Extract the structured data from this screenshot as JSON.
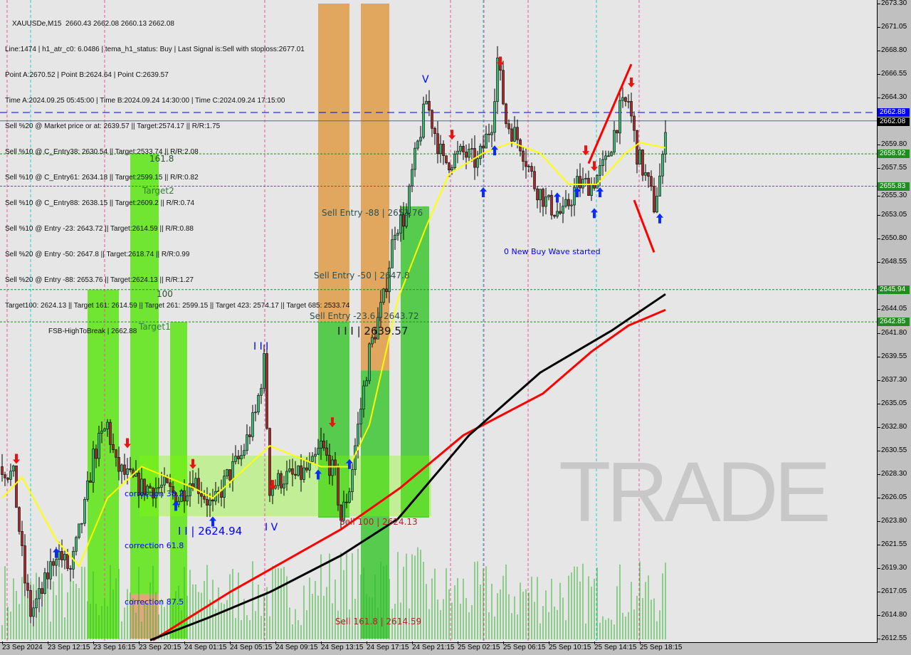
{
  "header": {
    "symbol_line": "XAUUSDe,M15  2660.43 2662.08 2660.13 2662.08",
    "lines": [
      "Line:1474 | h1_atr_c0: 6.0486 | tema_h1_status: Buy | Last Signal is:Sell with stoploss:2677.01",
      "Point A:2670.52 | Point B:2624.64 | Point C:2639.57",
      "Time A:2024.09.25 05:45:00 | Time B:2024.09.24 14:30:00 | Time C:2024.09.24 17:15:00",
      "Sell %20 @ Market price or at: 2639.57 || Target:2574.17 || R/R:1.75",
      "Sell %10 @ C_Entry38: 2630.54 || Target:2533.74 || R/R:2.08",
      "Sell %10 @ C_Entry61: 2634.18 || Target:2599.15 || R/R:0.82",
      "Sell %10 @ C_Entry88: 2638.15 || Target:2609.2 || R/R:0.74",
      "Sell %10 @ Entry -23: 2643.72 || Target:2614.59 || R/R:0.88",
      "Sell %20 @ Entry -50: 2647.8 || Target:2618.74 || R/R:0.99",
      "Sell %20 @ Entry -88: 2653.76 || Target:2624.13 || R/R:1.27",
      "Target100: 2624.13 || Target 161: 2614.59 || Target 261: 2599.15 || Target 423: 2574.17 || Target 685: 2533.74"
    ],
    "fsb": "FSB-HighToBreak | 2662.88"
  },
  "watermark": "TRADE",
  "chart_data": {
    "type": "candlestick",
    "symbol": "XAUUSDe",
    "timeframe": "M15",
    "ylim": [
      2612.55,
      2673.3
    ],
    "y_ticks": [
      "2673.30",
      "2671.05",
      "2668.80",
      "2666.55",
      "2664.30",
      "2659.80",
      "2657.55",
      "2655.30",
      "2653.05",
      "2650.80",
      "2648.55",
      "2644.05",
      "2641.80",
      "2639.55",
      "2637.30",
      "2635.05",
      "2632.80",
      "2630.55",
      "2628.30",
      "2626.05",
      "2623.80",
      "2621.55",
      "2619.30",
      "2617.05",
      "2614.80",
      "2612.55"
    ],
    "x_ticks": [
      "23 Sep 2024",
      "23 Sep 12:15",
      "23 Sep 16:15",
      "23 Sep 20:15",
      "24 Sep 01:15",
      "24 Sep 05:15",
      "24 Sep 09:15",
      "24 Sep 13:15",
      "24 Sep 17:15",
      "24 Sep 21:15",
      "25 Sep 02:15",
      "25 Sep 06:15",
      "25 Sep 10:15",
      "25 Sep 14:15",
      "25 Sep 18:15"
    ],
    "price_badges": [
      {
        "value": "2662.88",
        "color": "#0000ff",
        "style": "dashed"
      },
      {
        "value": "2662.08",
        "color": "#000000",
        "style": "solid"
      },
      {
        "value": "2658.92",
        "color": "#228b22",
        "style": "dotted"
      },
      {
        "value": "2655.83",
        "color": "#228b22",
        "style": "dotted"
      },
      {
        "value": "2645.94",
        "color": "#228b22",
        "style": "dotted"
      },
      {
        "value": "2642.85",
        "color": "#228b22",
        "style": "dotted"
      }
    ],
    "price_path": [
      [
        0,
        2629
      ],
      [
        4,
        2628
      ],
      [
        8,
        2618
      ],
      [
        10,
        2615
      ],
      [
        14,
        2617
      ],
      [
        19,
        2621
      ],
      [
        24,
        2619
      ],
      [
        29,
        2625
      ],
      [
        32,
        2630
      ],
      [
        37,
        2633
      ],
      [
        40,
        2629
      ],
      [
        44,
        2628
      ],
      [
        49,
        2627
      ],
      [
        57,
        2627
      ],
      [
        62,
        2626
      ],
      [
        67,
        2628
      ],
      [
        74,
        2625
      ],
      [
        79,
        2628
      ],
      [
        84,
        2630
      ],
      [
        89,
        2634
      ],
      [
        92,
        2639
      ],
      [
        94,
        2627
      ],
      [
        99,
        2628
      ],
      [
        104,
        2628
      ],
      [
        109,
        2629
      ],
      [
        112,
        2631
      ],
      [
        117,
        2628
      ],
      [
        119,
        2624
      ],
      [
        122,
        2627
      ],
      [
        124,
        2631
      ],
      [
        129,
        2640
      ],
      [
        134,
        2645
      ],
      [
        138,
        2652
      ],
      [
        142,
        2653
      ],
      [
        144,
        2657
      ],
      [
        149,
        2664
      ],
      [
        152,
        2661
      ],
      [
        155,
        2658
      ],
      [
        162,
        2659
      ],
      [
        167,
        2658
      ],
      [
        172,
        2662
      ],
      [
        174,
        2668
      ],
      [
        177,
        2662
      ],
      [
        182,
        2660
      ],
      [
        187,
        2656
      ],
      [
        192,
        2654
      ],
      [
        197,
        2653
      ],
      [
        202,
        2656
      ],
      [
        207,
        2656
      ],
      [
        212,
        2658
      ],
      [
        217,
        2663
      ],
      [
        220,
        2664
      ],
      [
        223,
        2659
      ],
      [
        227,
        2656
      ],
      [
        229,
        2654
      ],
      [
        232,
        2658
      ],
      [
        233,
        2662
      ]
    ],
    "ma_yellow": [
      [
        0,
        2626
      ],
      [
        7,
        2628
      ],
      [
        19,
        2622
      ],
      [
        27,
        2619.5
      ],
      [
        37,
        2626
      ],
      [
        49,
        2629
      ],
      [
        67,
        2627
      ],
      [
        74,
        2626
      ],
      [
        94,
        2631
      ],
      [
        112,
        2629
      ],
      [
        122,
        2629
      ],
      [
        129,
        2633
      ],
      [
        139,
        2645
      ],
      [
        149,
        2652
      ],
      [
        157,
        2657
      ],
      [
        169,
        2659
      ],
      [
        179,
        2660
      ],
      [
        189,
        2659
      ],
      [
        199,
        2656
      ],
      [
        209,
        2656
      ],
      [
        219,
        2659
      ],
      [
        224,
        2660
      ],
      [
        233,
        2659.5
      ]
    ],
    "ma_red": [
      [
        53,
        2612.4
      ],
      [
        80,
        2617
      ],
      [
        119,
        2623
      ],
      [
        140,
        2627
      ],
      [
        162,
        2632
      ],
      [
        190,
        2636
      ],
      [
        207,
        2640
      ],
      [
        220,
        2642.5
      ],
      [
        233,
        2644
      ]
    ],
    "ma_black": [
      [
        52,
        2612.4
      ],
      [
        72,
        2614.5
      ],
      [
        94,
        2617
      ],
      [
        119,
        2620.5
      ],
      [
        139,
        2624
      ],
      [
        164,
        2632
      ],
      [
        189,
        2638
      ],
      [
        214,
        2642
      ],
      [
        233,
        2645.5
      ]
    ],
    "signals_up": [
      [
        19,
        2621.5
      ],
      [
        61,
        2626
      ],
      [
        74,
        2624.5
      ],
      [
        111,
        2629
      ],
      [
        122,
        2630
      ],
      [
        169,
        2656
      ],
      [
        173,
        2660
      ],
      [
        195,
        2655.5
      ],
      [
        202,
        2656
      ],
      [
        208,
        2654
      ],
      [
        210,
        2656
      ],
      [
        231,
        2653.5
      ]
    ],
    "signals_down": [
      [
        5,
        2629
      ],
      [
        44,
        2630.5
      ],
      [
        67,
        2628.5
      ],
      [
        95,
        2626.5
      ],
      [
        116,
        2632.5
      ],
      [
        158,
        2660
      ],
      [
        175,
        2667
      ],
      [
        205,
        2658.5
      ],
      [
        208,
        2657
      ],
      [
        221,
        2665
      ]
    ],
    "zones": [
      {
        "from_bar": 30,
        "to_bar": 41,
        "top": 2645.94,
        "bottom": 2612.55,
        "color": "#64e61e"
      },
      {
        "from_bar": 45,
        "to_bar": 55,
        "top": 2658.92,
        "bottom": 2616.8,
        "color": "#64e61e"
      },
      {
        "from_bar": 45,
        "to_bar": 55,
        "top": 2616.8,
        "bottom": 2612.55,
        "color": "#e0a070"
      },
      {
        "from_bar": 59,
        "to_bar": 65,
        "top": 2642.85,
        "bottom": 2612.55,
        "color": "#64e61e"
      },
      {
        "from_bar": 111,
        "to_bar": 122,
        "top": 2673.3,
        "bottom": 2642.85,
        "color": "#e0a050"
      },
      {
        "from_bar": 111,
        "to_bar": 122,
        "top": 2642.85,
        "bottom": 2624.13,
        "color": "#46c83c"
      },
      {
        "from_bar": 126,
        "to_bar": 136,
        "top": 2673.3,
        "bottom": 2638.2,
        "color": "#e0a050"
      },
      {
        "from_bar": 126,
        "to_bar": 136,
        "top": 2638.2,
        "bottom": 2612.55,
        "color": "#46c83c"
      },
      {
        "from_bar": 140,
        "to_bar": 150,
        "top": 2653.9,
        "bottom": 2624.13,
        "color": "#46c83c"
      }
    ],
    "annotations": {
      "t161": "161.8",
      "target2": "Target2",
      "t100": "100",
      "target1": "Target1",
      "sell88": "Sell Entry -88 | 2653.76",
      "sell50": "Sell Entry -50 | 2647.8",
      "sell236": "Sell Entry -23.6 | 2643.72",
      "wave3": "I I I | 2639.57",
      "wave3b": "I I I",
      "wave5": "V",
      "wave4": "I V",
      "wave2": "I I | 2624.94",
      "newbuy": "0 New Buy Wave started",
      "corr38": "correction 38.2",
      "corr61": "correction 61.8",
      "corr87": "correction 87.5",
      "sell100": "Sell 100 | 2624.13",
      "sell161": "Sell 161.8 | 2614.59"
    }
  }
}
